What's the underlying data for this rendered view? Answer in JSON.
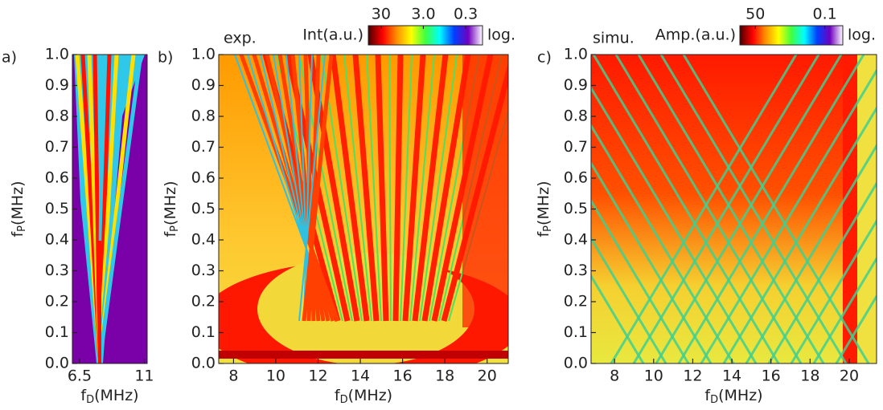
{
  "chart_data": [
    {
      "type": "heatmap",
      "panel_label": "a)",
      "xlabel": {
        "base": "f",
        "sub": "D",
        "unit": "(MHz)"
      },
      "ylabel": {
        "base": "f",
        "sub": "P",
        "unit": "(MHz)"
      },
      "xlim": [
        6.0,
        11.2
      ],
      "xticks": [
        6.5,
        11
      ],
      "ylim": [
        0,
        1
      ],
      "yticks": [
        {
          "value": 0,
          "label": "0.0"
        },
        0.1,
        0.2,
        0.3,
        0.4,
        0.5,
        0.6,
        0.7,
        0.8,
        0.9,
        {
          "value": 1,
          "label": "1.0"
        }
      ]
    },
    {
      "type": "heatmap",
      "panel_label": "b)",
      "annotation": "exp.",
      "xlabel": {
        "base": "f",
        "sub": "D",
        "unit": "(MHz)"
      },
      "ylabel": {
        "base": "f",
        "sub": "P",
        "unit": "(MHz)"
      },
      "xlim": [
        7.3,
        21
      ],
      "xticks": [
        8,
        10,
        12,
        14,
        16,
        18,
        20
      ],
      "ylim": [
        0,
        1
      ],
      "yticks": [
        {
          "value": 0,
          "label": "0.0"
        },
        0.1,
        0.2,
        0.3,
        0.4,
        0.5,
        0.6,
        0.7,
        0.8,
        0.9,
        {
          "value": 1,
          "label": "1.0"
        }
      ],
      "colorbar": {
        "label": "Int(a.u.)",
        "note": "log.",
        "scale": "log",
        "lim": [
          60,
          0.12
        ],
        "ticks": [
          30,
          {
            "value": 3,
            "label": "3.0"
          },
          0.3
        ],
        "colors": [
          "#4a0000",
          "#ff0000",
          "#ff9000",
          "#ffff00",
          "#40ff40",
          "#00ffff",
          "#0040ff",
          "#7000c0",
          "#ffffff"
        ]
      }
    },
    {
      "type": "heatmap",
      "panel_label": "c)",
      "annotation": "simu.",
      "xlabel": {
        "base": "f",
        "sub": "D",
        "unit": "(MHz)"
      },
      "ylabel": {
        "base": "f",
        "sub": "P",
        "unit": "(MHz)"
      },
      "xlim": [
        6.8,
        21.4
      ],
      "xticks": [
        8,
        10,
        12,
        14,
        16,
        18,
        20
      ],
      "ylim": [
        0,
        1
      ],
      "yticks": [
        {
          "value": 0,
          "label": "0.0"
        },
        0.1,
        0.2,
        0.3,
        0.4,
        0.5,
        0.6,
        0.7,
        0.8,
        0.9,
        {
          "value": 1,
          "label": "1.0"
        }
      ],
      "colorbar": {
        "label": "Amp.(a.u.)",
        "note": "log.",
        "scale": "log",
        "lim": [
          200,
          0.02
        ],
        "ticks": [
          50,
          0.1
        ],
        "colors": [
          "#4a0000",
          "#ff0000",
          "#ff9000",
          "#ffff00",
          "#40ff40",
          "#00ffff",
          "#0040ff",
          "#7000c0",
          "#ffffff"
        ]
      }
    }
  ]
}
